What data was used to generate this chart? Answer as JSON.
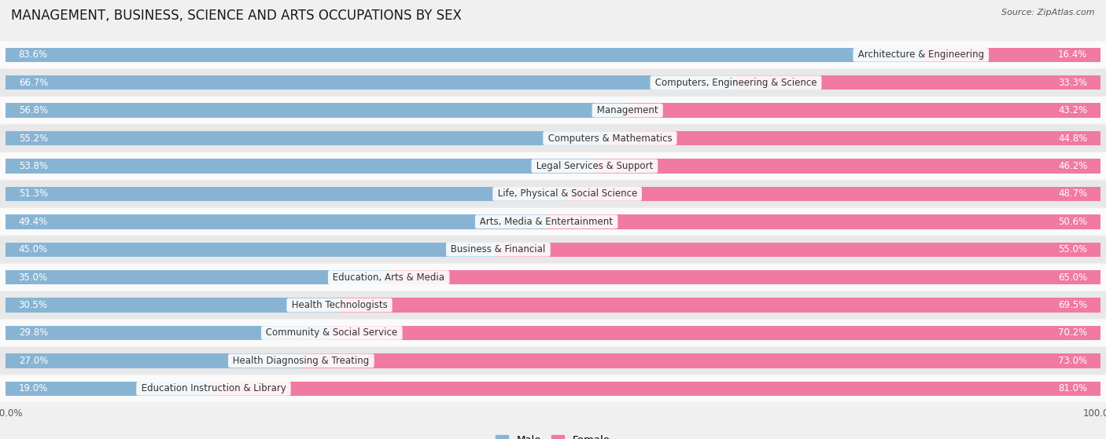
{
  "title": "MANAGEMENT, BUSINESS, SCIENCE AND ARTS OCCUPATIONS BY SEX",
  "source": "Source: ZipAtlas.com",
  "categories": [
    "Architecture & Engineering",
    "Computers, Engineering & Science",
    "Management",
    "Computers & Mathematics",
    "Legal Services & Support",
    "Life, Physical & Social Science",
    "Arts, Media & Entertainment",
    "Business & Financial",
    "Education, Arts & Media",
    "Health Technologists",
    "Community & Social Service",
    "Health Diagnosing & Treating",
    "Education Instruction & Library"
  ],
  "male_pct": [
    83.6,
    66.7,
    56.8,
    55.2,
    53.8,
    51.3,
    49.4,
    45.0,
    35.0,
    30.5,
    29.8,
    27.0,
    19.0
  ],
  "female_pct": [
    16.4,
    33.3,
    43.2,
    44.8,
    46.2,
    48.7,
    50.6,
    55.0,
    65.0,
    69.5,
    70.2,
    73.0,
    81.0
  ],
  "male_color": "#88b4d4",
  "female_color": "#f07aa0",
  "bg_color": "#f0f0f0",
  "row_light_color": "#fafafa",
  "row_dark_color": "#e8e8e8",
  "title_fontsize": 12,
  "bar_height": 0.52,
  "male_label_inside_color": "white",
  "male_label_outside_color": "#444444",
  "female_label_inside_color": "white",
  "female_label_outside_color": "#444444",
  "category_label_fontsize": 8.5,
  "pct_label_fontsize": 8.5
}
